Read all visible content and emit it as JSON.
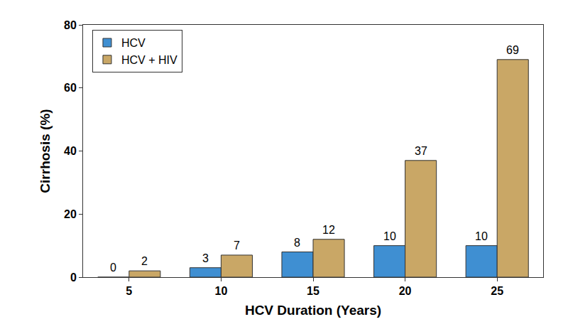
{
  "chart_data": {
    "type": "bar",
    "x_label": "HCV Duration (Years)",
    "y_label": "Cirrhosis (%)",
    "categories": [
      "5",
      "10",
      "15",
      "20",
      "25"
    ],
    "series": [
      {
        "name": "HCV",
        "color": "#3f8fd2",
        "values": [
          0,
          3,
          8,
          10,
          10
        ]
      },
      {
        "name": "HCV + HIV",
        "color": "#c9a766",
        "values": [
          2,
          7,
          12,
          37,
          69
        ]
      }
    ],
    "ylim": [
      0,
      80
    ],
    "yticks": [
      0,
      20,
      40,
      60,
      80
    ],
    "grid": false,
    "legend": "upper left",
    "data_labels": true
  }
}
